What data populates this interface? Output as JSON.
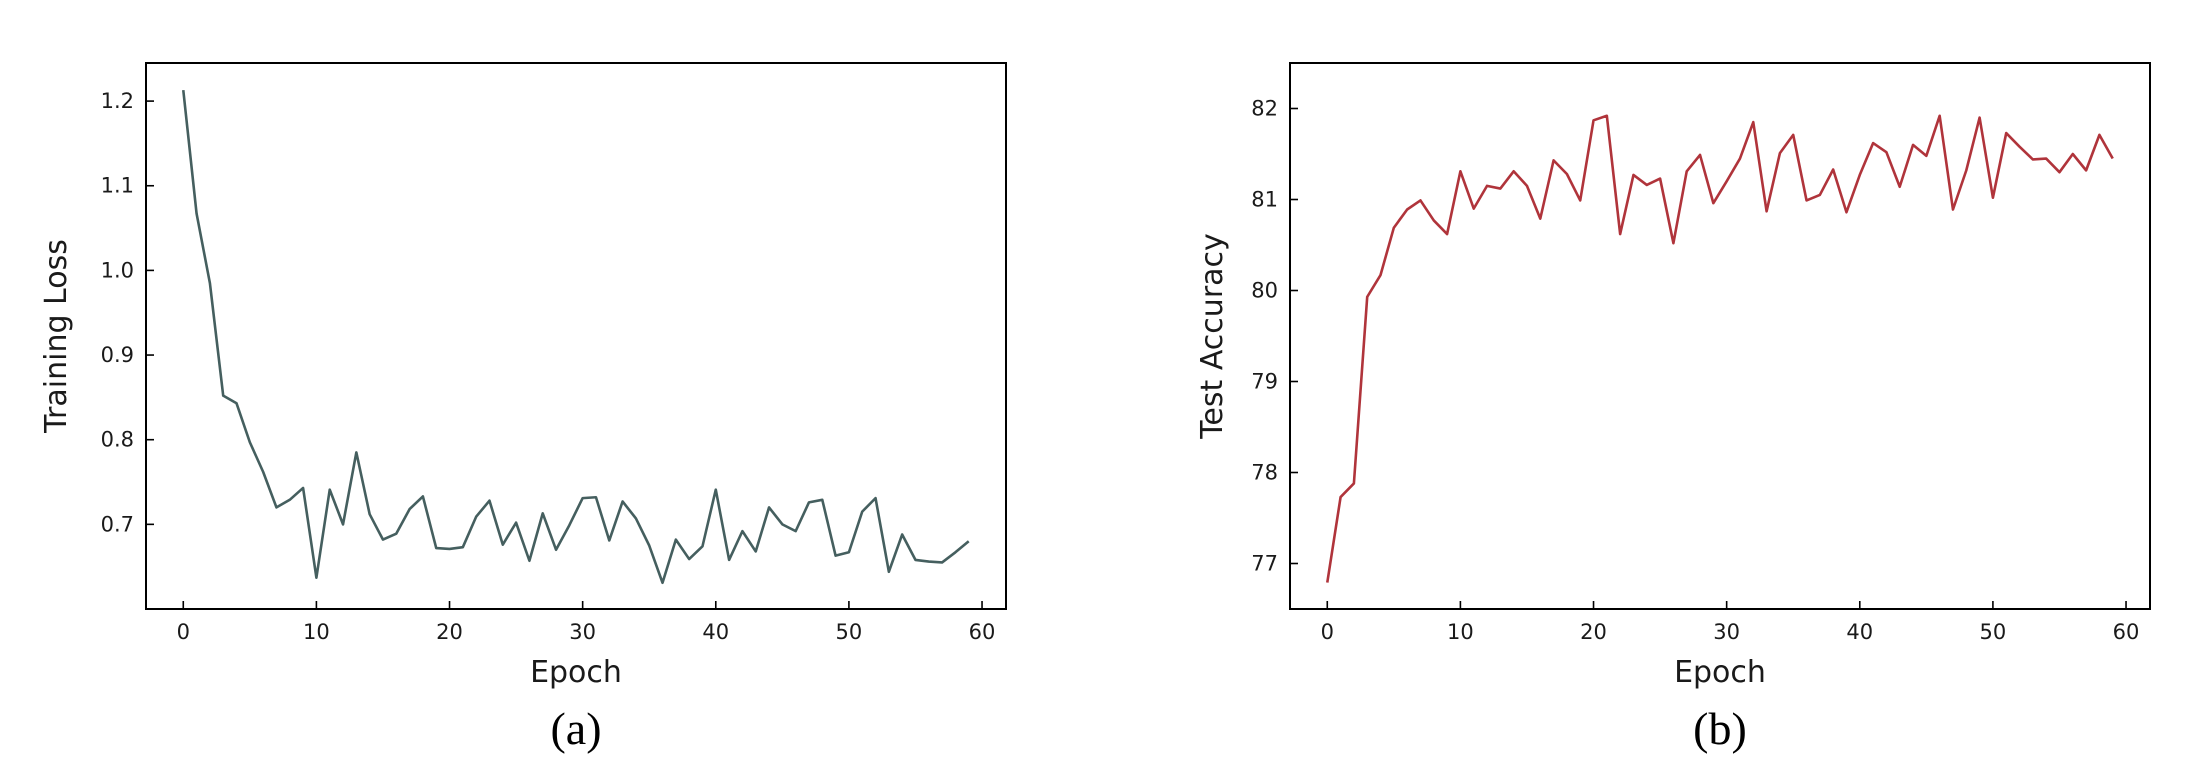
{
  "chart_data": [
    {
      "type": "line",
      "caption": "(a)",
      "xlabel": "Epoch",
      "ylabel": "Training Loss",
      "xlim": [
        -2.8,
        61.8
      ],
      "ylim": [
        0.6,
        1.245
      ],
      "x_ticks": [
        0,
        10,
        20,
        30,
        40,
        50,
        60
      ],
      "y_ticks": [
        0.7,
        0.8,
        0.9,
        1.0,
        1.1,
        1.2
      ],
      "y_tick_labels": [
        "0.7",
        "0.8",
        "0.9",
        "1.0",
        "1.1",
        "1.2"
      ],
      "color": "#455f5f",
      "series": [
        {
          "x": [
            0,
            1,
            2,
            3,
            4,
            5,
            6,
            7,
            8,
            9,
            10,
            11,
            12,
            13,
            14,
            15,
            16,
            17,
            18,
            19,
            20,
            21,
            22,
            23,
            24,
            25,
            26,
            27,
            28,
            29,
            30,
            31,
            32,
            33,
            34,
            35,
            36,
            37,
            38,
            39,
            40,
            41,
            42,
            43,
            44,
            45,
            46,
            47,
            48,
            49,
            50,
            51,
            52,
            53,
            54,
            55,
            56,
            57,
            58,
            59
          ],
          "values": [
            1.213,
            1.067,
            0.985,
            0.852,
            0.843,
            0.797,
            0.762,
            0.72,
            0.729,
            0.743,
            0.637,
            0.741,
            0.7,
            0.785,
            0.712,
            0.682,
            0.689,
            0.718,
            0.733,
            0.672,
            0.671,
            0.673,
            0.709,
            0.728,
            0.676,
            0.702,
            0.657,
            0.713,
            0.67,
            0.699,
            0.731,
            0.732,
            0.681,
            0.727,
            0.707,
            0.675,
            0.631,
            0.682,
            0.659,
            0.674,
            0.741,
            0.658,
            0.692,
            0.668,
            0.72,
            0.7,
            0.692,
            0.726,
            0.729,
            0.663,
            0.667,
            0.715,
            0.731,
            0.644,
            0.688,
            0.658,
            0.656,
            0.655,
            0.667,
            0.68
          ]
        }
      ]
    },
    {
      "type": "line",
      "caption": "(b)",
      "xlabel": "Epoch",
      "ylabel": "Test Accuracy",
      "xlim": [
        -2.8,
        61.8
      ],
      "ylim": [
        76.5,
        82.5
      ],
      "x_ticks": [
        0,
        10,
        20,
        30,
        40,
        50,
        60
      ],
      "y_ticks": [
        77,
        78,
        79,
        80,
        81,
        82
      ],
      "y_tick_labels": [
        "77",
        "78",
        "79",
        "80",
        "81",
        "82"
      ],
      "color": "#b0343b",
      "series": [
        {
          "x": [
            0,
            1,
            2,
            3,
            4,
            5,
            6,
            7,
            8,
            9,
            10,
            11,
            12,
            13,
            14,
            15,
            16,
            17,
            18,
            19,
            20,
            21,
            22,
            23,
            24,
            25,
            26,
            27,
            28,
            29,
            30,
            31,
            32,
            33,
            34,
            35,
            36,
            37,
            38,
            39,
            40,
            41,
            42,
            43,
            44,
            45,
            46,
            47,
            48,
            49,
            50,
            51,
            52,
            53,
            54,
            55,
            56,
            57,
            58,
            59
          ],
          "values": [
            76.79,
            77.73,
            77.88,
            79.93,
            80.17,
            80.69,
            80.89,
            80.99,
            80.77,
            80.62,
            81.31,
            80.9,
            81.15,
            81.12,
            81.31,
            81.15,
            80.79,
            81.43,
            81.28,
            80.99,
            81.87,
            81.92,
            80.62,
            81.27,
            81.16,
            81.23,
            80.52,
            81.31,
            81.49,
            80.96,
            81.2,
            81.45,
            81.85,
            80.87,
            81.51,
            81.71,
            80.99,
            81.05,
            81.33,
            80.86,
            81.27,
            81.62,
            81.52,
            81.14,
            81.6,
            81.48,
            81.92,
            80.89,
            81.32,
            81.9,
            81.02,
            81.73,
            81.58,
            81.44,
            81.45,
            81.3,
            81.5,
            81.32,
            81.71,
            81.45
          ]
        }
      ]
    }
  ]
}
